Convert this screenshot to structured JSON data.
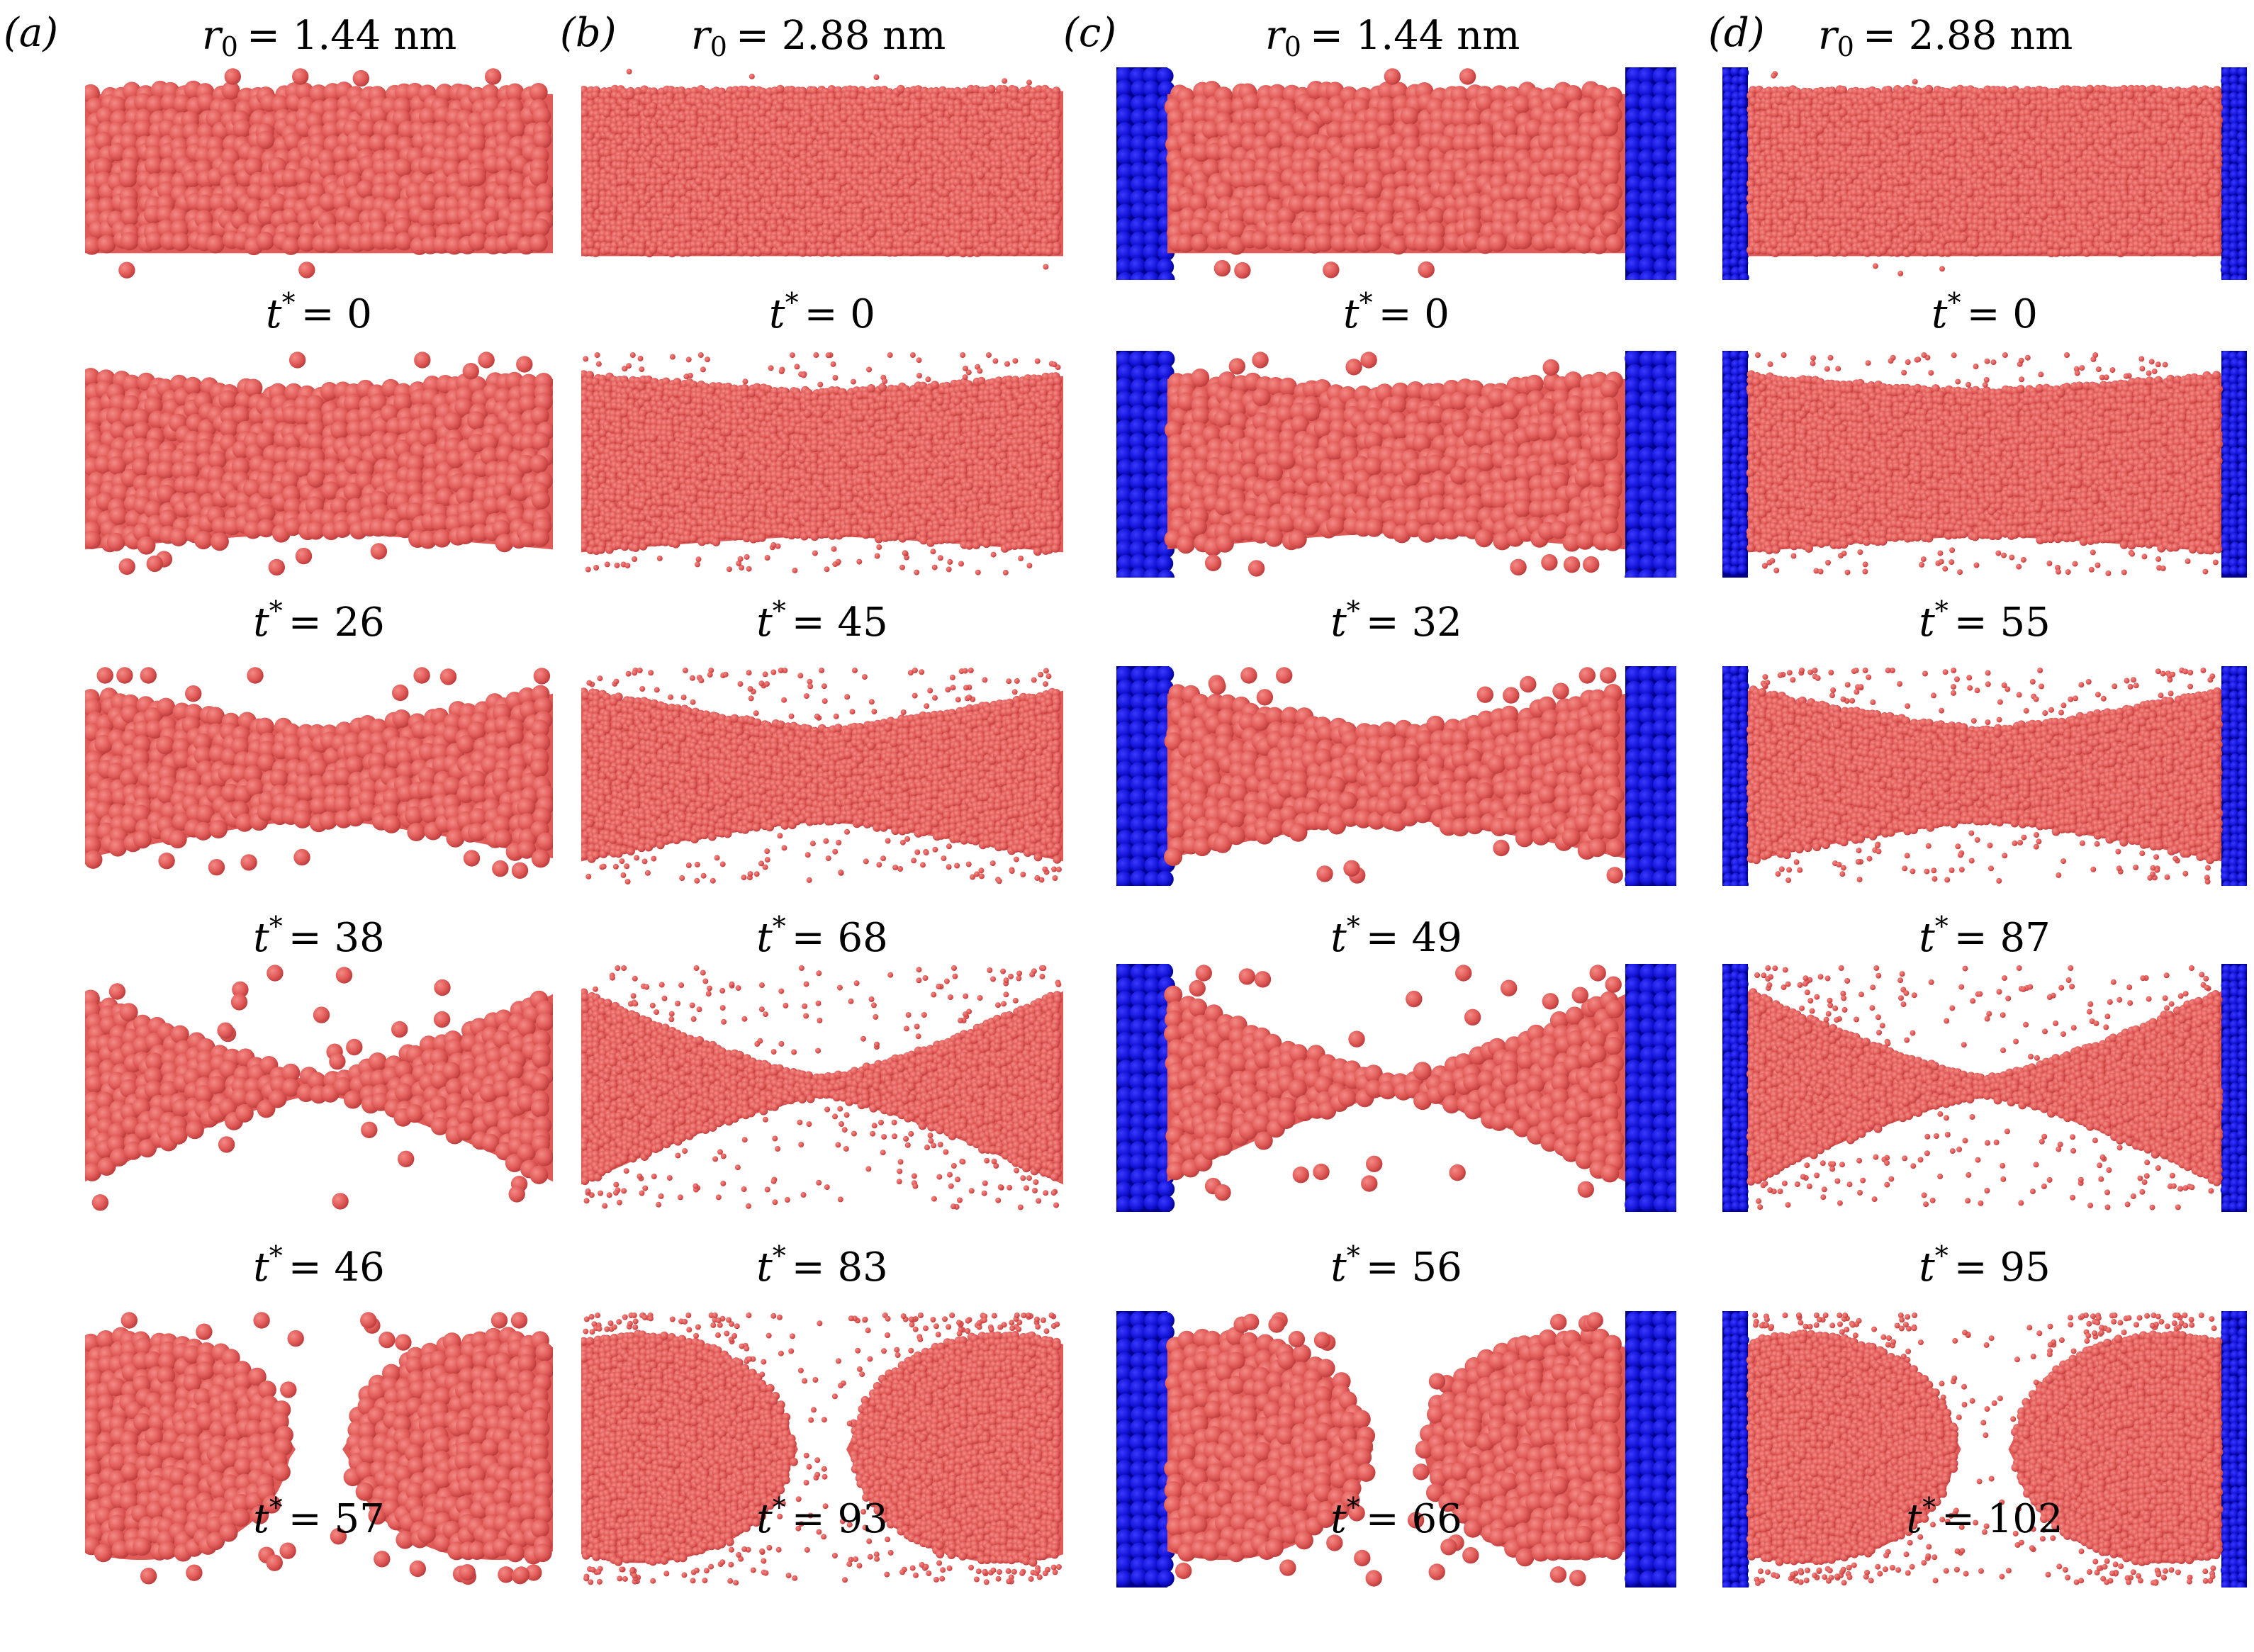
{
  "columns": [
    {
      "letter": "(a)",
      "radius_symbol": "r",
      "radius_sub": "0",
      "radius_value": "= 1.44 nm",
      "times": [
        "0",
        "26",
        "38",
        "46",
        "57"
      ],
      "walls": false,
      "particle_size": "large"
    },
    {
      "letter": "(b)",
      "radius_symbol": "r",
      "radius_sub": "0",
      "radius_value": "= 2.88 nm",
      "times": [
        "0",
        "45",
        "68",
        "83",
        "93"
      ],
      "walls": false,
      "particle_size": "small"
    },
    {
      "letter": "(c)",
      "radius_symbol": "r",
      "radius_sub": "0",
      "radius_value": "= 1.44 nm",
      "times": [
        "0",
        "32",
        "49",
        "56",
        "66"
      ],
      "walls": true,
      "particle_size": "large"
    },
    {
      "letter": "(d)",
      "radius_symbol": "r",
      "radius_sub": "0",
      "radius_value": "= 2.88 nm",
      "times": [
        "0",
        "55",
        "87",
        "95",
        "102"
      ],
      "walls": true,
      "particle_size": "small"
    }
  ],
  "time_symbol": "t",
  "time_sup": "*",
  "time_eq": "= ",
  "colors": {
    "liquid": "#e05a57",
    "liquid_dark": "#b93a3a",
    "wall": "#1414d8",
    "wall_dark": "#00008a"
  },
  "stages": [
    {
      "neck": 1.0
    },
    {
      "neck": 0.82
    },
    {
      "neck": 0.55
    },
    {
      "neck": 0.12
    },
    {
      "neck": 0.0
    }
  ]
}
